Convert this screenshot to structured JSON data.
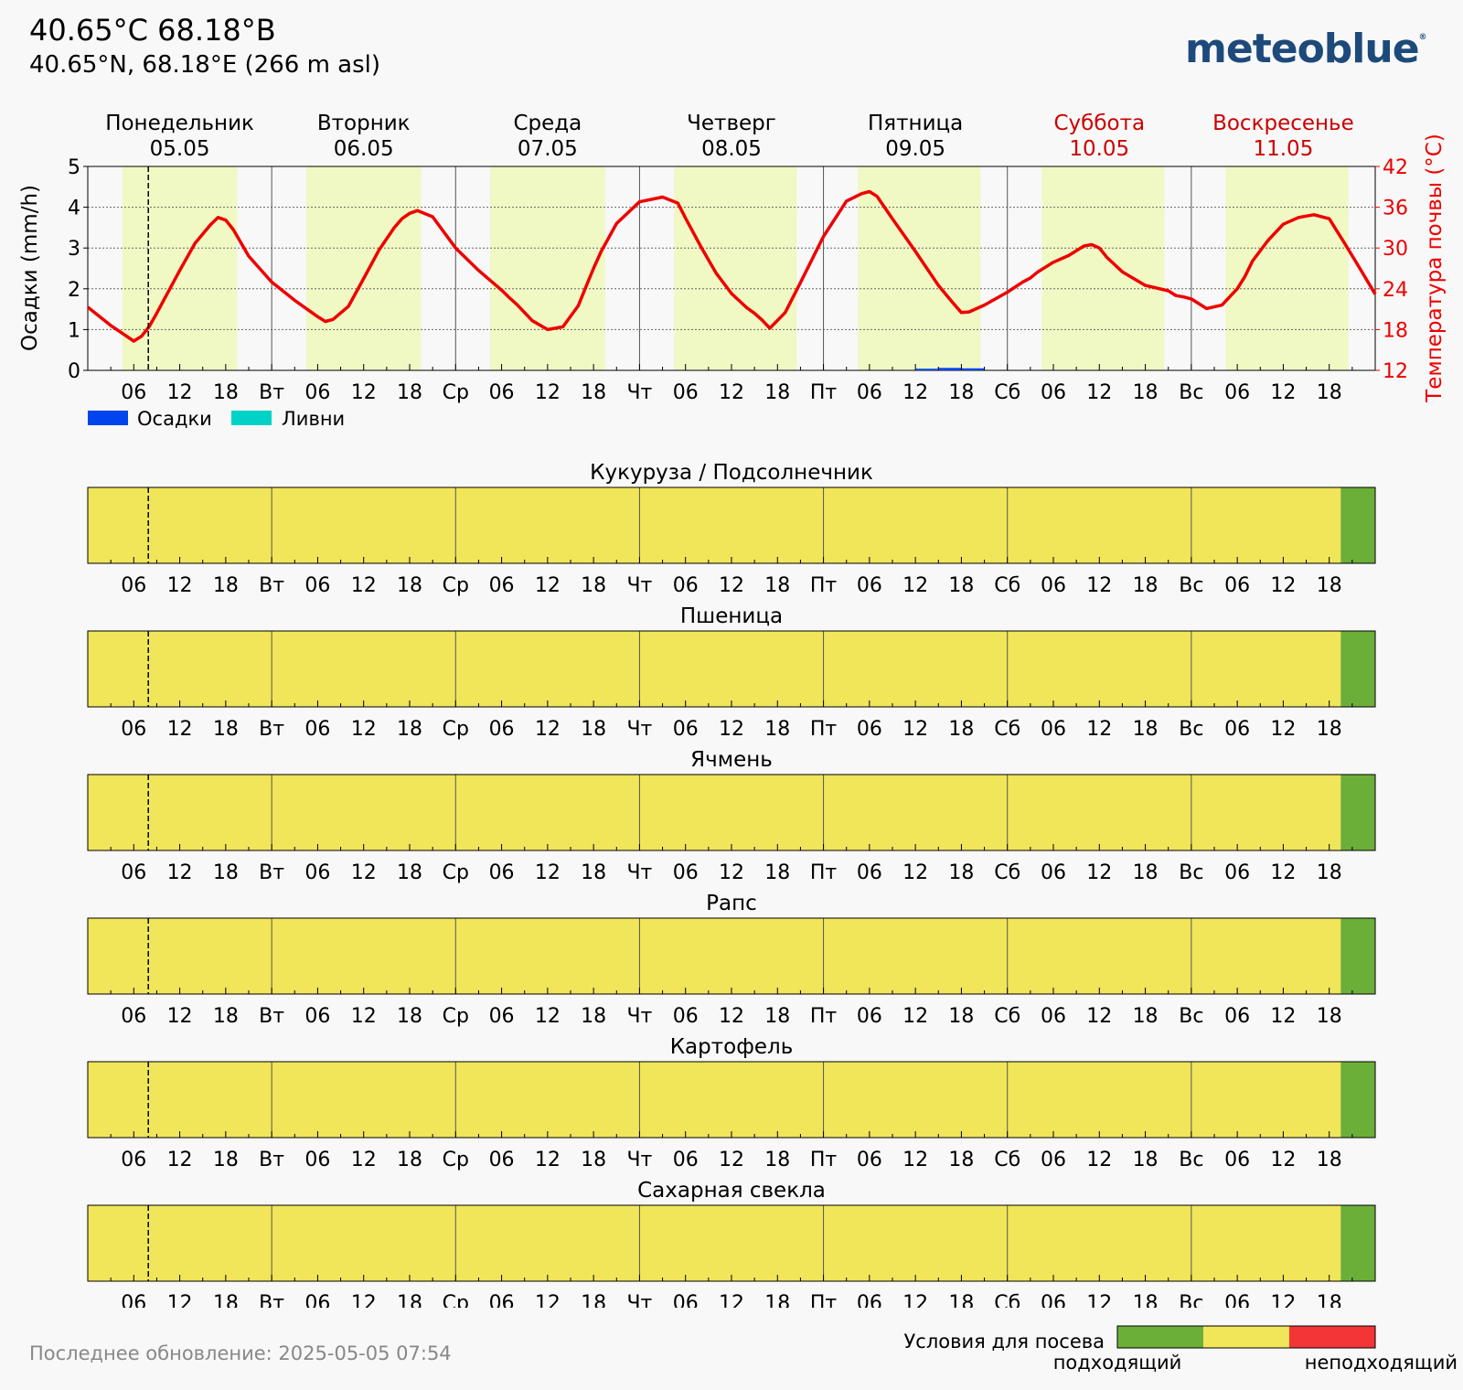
{
  "header": {
    "title": "40.65°C 68.18°B",
    "subtitle": "40.65°N, 68.18°E (266 m asl)",
    "logo": "meteoblue",
    "logo_mark": "®"
  },
  "footer": {
    "last_update": "Последнее обновление: 2025-05-05 07:54"
  },
  "colors": {
    "daylight": "#f0f8c4",
    "night": "#f8f8f8",
    "temperature": "#ee0000",
    "precip": "#0044ee",
    "showers": "#00d2c8",
    "suitable": "#6baf38",
    "moderate": "#f1e55a",
    "unsuitable": "#f33535",
    "weekend_text": "#cc0000"
  },
  "days": [
    {
      "name": "Понедельник",
      "date": "05.05",
      "short": "",
      "weekend": false
    },
    {
      "name": "Вторник",
      "date": "06.05",
      "short": "Вт",
      "weekend": false
    },
    {
      "name": "Среда",
      "date": "07.05",
      "short": "Ср",
      "weekend": false
    },
    {
      "name": "Четверг",
      "date": "08.05",
      "short": "Чт",
      "weekend": false
    },
    {
      "name": "Пятница",
      "date": "09.05",
      "short": "Пт",
      "weekend": false
    },
    {
      "name": "Суббота",
      "date": "10.05",
      "short": "Сб",
      "weekend": true
    },
    {
      "name": "Воскресенье",
      "date": "11.05",
      "short": "Вс",
      "weekend": true
    }
  ],
  "hour_ticks": [
    "06",
    "12",
    "18"
  ],
  "now_hour": 7.9,
  "daylight_hours": [
    [
      4.5,
      19.5
    ],
    [
      4.5,
      19.5
    ],
    [
      4.5,
      19.5
    ],
    [
      4.5,
      20.5
    ],
    [
      4.5,
      20.5
    ],
    [
      4.5,
      20.5
    ],
    [
      4.5,
      20.5
    ]
  ],
  "legend": {
    "precip_label": "Осадки",
    "showers_label": "Ливни"
  },
  "chart_data": {
    "type": "line",
    "x_unit": "hours since 2025-05-05 00:00",
    "xlim": [
      0,
      168
    ],
    "ylabel_left": "Осадки (mm/h)",
    "ylim_left": [
      0,
      5
    ],
    "yticks_left": [
      "0",
      "1",
      "2",
      "3",
      "4",
      "5"
    ],
    "ylabel_right": "Температура почвы (°C)",
    "ylim_right": [
      12,
      42
    ],
    "yticks_right": [
      "12",
      "18",
      "24",
      "30",
      "36",
      "42"
    ],
    "series": [
      {
        "name": "Температура почвы (°C)",
        "axis": "right",
        "x": [
          0,
          3,
          6,
          7,
          8,
          9,
          12,
          14,
          16,
          17,
          18,
          19,
          21,
          24,
          27,
          30,
          31,
          32,
          34,
          36,
          38,
          40,
          41,
          42,
          43,
          45,
          48,
          51,
          54,
          55,
          56,
          58,
          60,
          62,
          64,
          65,
          66,
          67,
          69,
          72,
          75,
          77,
          78,
          80,
          82,
          84,
          86,
          87,
          88,
          89,
          91,
          93,
          96,
          99,
          101,
          102,
          103,
          105,
          108,
          111,
          113,
          114,
          115,
          117,
          120,
          122,
          123,
          124,
          126,
          128,
          130,
          131,
          132,
          133,
          135,
          138,
          141,
          142,
          143,
          144,
          146,
          148,
          150,
          151,
          152,
          154,
          156,
          158,
          160,
          162,
          164,
          166,
          168
        ],
        "y": [
          21.3,
          18.6,
          16.3,
          17.0,
          18.4,
          20.4,
          26.7,
          30.7,
          33.4,
          34.5,
          34.1,
          32.7,
          28.8,
          25.0,
          22.3,
          19.9,
          19.2,
          19.5,
          21.4,
          25.5,
          29.7,
          33.0,
          34.3,
          35.1,
          35.5,
          34.6,
          30.0,
          26.7,
          23.8,
          22.7,
          21.7,
          19.3,
          18.0,
          18.4,
          21.5,
          24.3,
          27.0,
          29.5,
          33.6,
          36.8,
          37.5,
          36.6,
          34.4,
          30.2,
          26.3,
          23.3,
          21.2,
          20.4,
          19.4,
          18.2,
          20.5,
          24.9,
          31.7,
          36.9,
          38.0,
          38.3,
          37.6,
          34.3,
          29.5,
          24.5,
          21.8,
          20.5,
          20.6,
          21.6,
          23.5,
          25.0,
          25.6,
          26.5,
          27.9,
          28.9,
          30.3,
          30.5,
          30.0,
          28.6,
          26.5,
          24.5,
          23.7,
          23.0,
          22.8,
          22.5,
          21.1,
          21.6,
          24.0,
          25.8,
          28.1,
          31.1,
          33.5,
          34.5,
          34.9,
          34.3,
          30.7,
          27.0,
          23.2
        ]
      },
      {
        "name": "Осадки",
        "axis": "left",
        "x": [
          108,
          111,
          114
        ],
        "y": [
          0.04,
          0.06,
          0.05
        ]
      },
      {
        "name": "Ливни",
        "axis": "left",
        "x": [],
        "y": []
      }
    ]
  },
  "crop_panels": [
    {
      "title": "Кукуруза / Подсолнечник",
      "changes": [
        [
          0,
          "moderate"
        ],
        [
          163.5,
          "suitable"
        ]
      ]
    },
    {
      "title": "Пшеница",
      "changes": [
        [
          0,
          "moderate"
        ],
        [
          163.5,
          "suitable"
        ]
      ]
    },
    {
      "title": "Ячмень",
      "changes": [
        [
          0,
          "moderate"
        ],
        [
          163.5,
          "suitable"
        ]
      ]
    },
    {
      "title": "Рапс",
      "changes": [
        [
          0,
          "moderate"
        ],
        [
          163.5,
          "suitable"
        ]
      ]
    },
    {
      "title": "Картофель",
      "changes": [
        [
          0,
          "moderate"
        ],
        [
          163.5,
          "suitable"
        ]
      ]
    },
    {
      "title": "Сахарная свекла",
      "changes": [
        [
          0,
          "moderate"
        ],
        [
          163.5,
          "suitable"
        ]
      ]
    }
  ],
  "conditions_legend": {
    "title": "Условия для посева",
    "suitable_label": "подходящий",
    "unsuitable_label": "неподходящий"
  }
}
